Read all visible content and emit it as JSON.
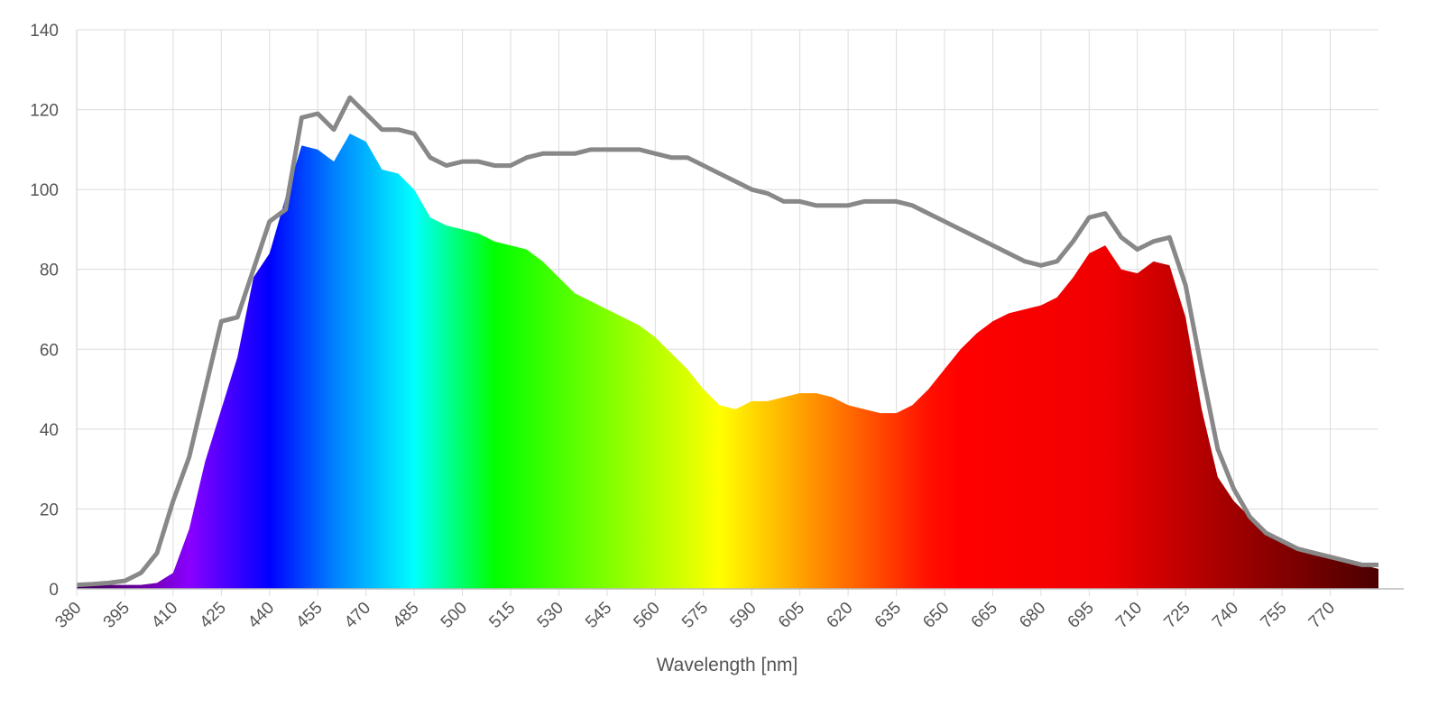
{
  "chart_data": {
    "type": "area",
    "xlabel": "Wavelength [nm]",
    "x": [
      380,
      385,
      390,
      395,
      400,
      405,
      410,
      415,
      420,
      425,
      430,
      435,
      440,
      445,
      450,
      455,
      460,
      465,
      470,
      475,
      480,
      485,
      490,
      495,
      500,
      505,
      510,
      515,
      520,
      525,
      530,
      535,
      540,
      545,
      550,
      555,
      560,
      565,
      570,
      575,
      580,
      585,
      590,
      595,
      600,
      605,
      610,
      615,
      620,
      625,
      630,
      635,
      640,
      645,
      650,
      655,
      660,
      665,
      670,
      675,
      680,
      685,
      690,
      695,
      700,
      705,
      710,
      715,
      720,
      725,
      730,
      735,
      740,
      745,
      750,
      755,
      760,
      765,
      770,
      775,
      780,
      785
    ],
    "series": [
      {
        "color": "spectrum",
        "values": [
          0.5,
          0.8,
          1,
          1,
          1,
          1.5,
          4,
          15,
          32,
          45,
          58,
          78,
          84,
          98,
          111,
          110,
          107,
          114,
          112,
          105,
          104,
          100,
          93,
          91,
          90,
          89,
          87,
          86,
          85,
          82,
          78,
          74,
          72,
          70,
          68,
          66,
          63,
          59,
          55,
          50,
          46,
          45,
          47,
          47,
          48,
          49,
          49,
          48,
          46,
          45,
          44,
          44,
          46,
          50,
          55,
          60,
          64,
          67,
          69,
          70,
          71,
          73,
          78,
          84,
          86,
          80,
          79,
          82,
          81,
          68,
          45,
          28,
          22,
          18,
          14,
          12,
          10,
          9,
          8,
          7,
          6,
          5
        ]
      },
      {
        "color": "#888888",
        "values": [
          1,
          1.2,
          1.5,
          2,
          4,
          9,
          22,
          33,
          50,
          67,
          68,
          80,
          92,
          95,
          118,
          119,
          115,
          123,
          119,
          115,
          115,
          114,
          108,
          106,
          107,
          107,
          106,
          106,
          108,
          109,
          109,
          109,
          110,
          110,
          110,
          110,
          109,
          108,
          108,
          106,
          104,
          102,
          100,
          99,
          97,
          97,
          96,
          96,
          96,
          97,
          97,
          97,
          96,
          94,
          92,
          90,
          88,
          86,
          84,
          82,
          81,
          82,
          87,
          93,
          94,
          88,
          85,
          87,
          88,
          76,
          55,
          35,
          25,
          18,
          14,
          12,
          10,
          9,
          8,
          7,
          6,
          6
        ]
      }
    ],
    "xlim": [
      380,
      785
    ],
    "xticks": [
      380,
      395,
      410,
      425,
      440,
      455,
      470,
      485,
      500,
      515,
      530,
      545,
      560,
      575,
      590,
      605,
      620,
      635,
      650,
      665,
      680,
      695,
      710,
      725,
      740,
      755,
      770
    ],
    "ylim": [
      0,
      140
    ],
    "yticks": [
      0,
      20,
      40,
      60,
      80,
      100,
      120,
      140
    ],
    "grid": true
  }
}
